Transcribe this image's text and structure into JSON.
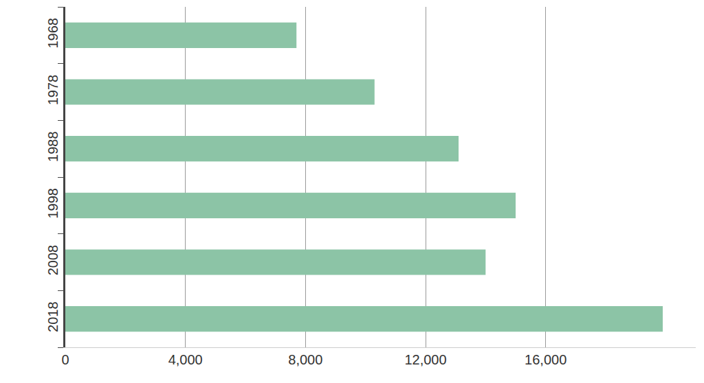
{
  "chart_data": {
    "type": "bar",
    "orientation": "horizontal",
    "categories": [
      "1968",
      "1978",
      "1988",
      "1998",
      "2008",
      "2018"
    ],
    "values": [
      7700,
      10300,
      13100,
      15000,
      14000,
      19900
    ],
    "color": "#8cc4a6",
    "xlim": [
      0,
      21000
    ],
    "xticks": [
      0,
      {
        "value": 4000,
        "label": "4,000"
      },
      {
        "value": 8000,
        "label": "8,000"
      },
      {
        "value": 12000,
        "label": "12,000"
      },
      {
        "value": 16000,
        "label": "16,000"
      }
    ],
    "grid": true
  }
}
